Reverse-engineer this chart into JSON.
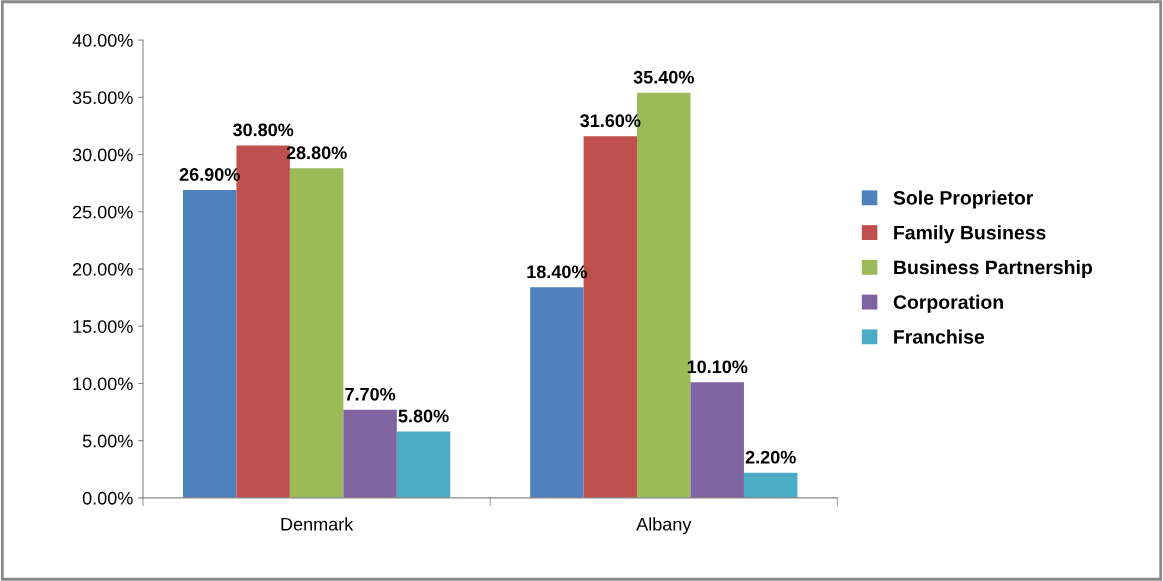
{
  "chart_data": {
    "type": "bar",
    "categories": [
      "Denmark",
      "Albany"
    ],
    "series": [
      {
        "name": "Sole Proprietor",
        "color": "#4f81bd",
        "values": [
          26.9,
          18.4
        ],
        "value_labels": [
          "26.90%",
          "18.40%"
        ]
      },
      {
        "name": "Family Business",
        "color": "#c0504d",
        "values": [
          30.8,
          31.6
        ],
        "value_labels": [
          "30.80%",
          "31.60%"
        ]
      },
      {
        "name": "Business Partnership",
        "color": "#9bbb59",
        "values": [
          28.8,
          35.4
        ],
        "value_labels": [
          "28.80%",
          "35.40%"
        ]
      },
      {
        "name": "Corporation",
        "color": "#8064a2",
        "values": [
          7.7,
          10.1
        ],
        "value_labels": [
          "7.70%",
          "10.10%"
        ]
      },
      {
        "name": "Franchise",
        "color": "#4bacc6",
        "values": [
          5.8,
          2.2
        ],
        "value_labels": [
          "5.80%",
          "2.20%"
        ]
      }
    ],
    "ylim": [
      0,
      40
    ],
    "yticks": [
      {
        "value": 0,
        "label": "0.00%"
      },
      {
        "value": 5,
        "label": "5.00%"
      },
      {
        "value": 10,
        "label": "10.00%"
      },
      {
        "value": 15,
        "label": "15.00%"
      },
      {
        "value": 20,
        "label": "20.00%"
      },
      {
        "value": 25,
        "label": "25.00%"
      },
      {
        "value": 30,
        "label": "30.00%"
      },
      {
        "value": 35,
        "label": "35.00%"
      },
      {
        "value": 40,
        "label": "40.00%"
      }
    ],
    "grid": false,
    "legend": "right"
  }
}
